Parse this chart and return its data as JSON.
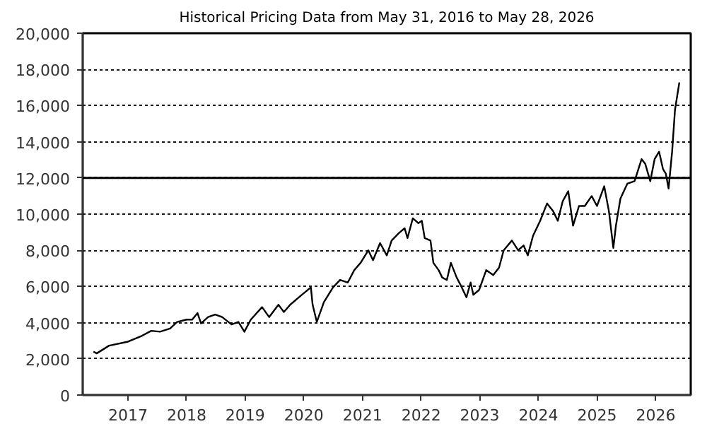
{
  "chart_data": {
    "type": "line",
    "title": "Historical Pricing Data from May 31, 2016 to May 28, 2026",
    "x": [
      "2016-05-31",
      "2016-06-20",
      "2016-09-05",
      "2017-01-01",
      "2017-03-28",
      "2017-05-26",
      "2017-07-20",
      "2017-09-20",
      "2017-11-03",
      "2018-01-01",
      "2018-02-05",
      "2018-03-10",
      "2018-04-01",
      "2018-05-15",
      "2018-06-28",
      "2018-08-10",
      "2018-10-08",
      "2018-11-20",
      "2018-12-27",
      "2019-02-05",
      "2019-04-16",
      "2019-05-30",
      "2019-07-27",
      "2019-08-30",
      "2019-10-08",
      "2019-12-20",
      "2020-02-14",
      "2020-02-25",
      "2020-03-22",
      "2020-05-05",
      "2020-07-01",
      "2020-08-14",
      "2020-10-01",
      "2020-11-10",
      "2020-12-20",
      "2021-02-06",
      "2021-03-07",
      "2021-04-20",
      "2021-06-01",
      "2021-07-01",
      "2021-08-15",
      "2021-09-20",
      "2021-10-08",
      "2021-11-10",
      "2021-12-15",
      "2022-01-05",
      "2022-01-23",
      "2022-02-28",
      "2022-03-18",
      "2022-04-20",
      "2022-05-12",
      "2022-06-10",
      "2022-07-05",
      "2022-08-10",
      "2022-09-03",
      "2022-10-10",
      "2022-11-05",
      "2022-11-22",
      "2022-12-28",
      "2023-02-10",
      "2023-03-26",
      "2023-05-01",
      "2023-05-30",
      "2023-07-20",
      "2023-08-28",
      "2023-10-01",
      "2023-10-27",
      "2023-11-29",
      "2024-01-12",
      "2024-02-24",
      "2024-04-01",
      "2024-05-01",
      "2024-06-01",
      "2024-07-05",
      "2024-08-04",
      "2024-09-10",
      "2024-10-16",
      "2024-11-28",
      "2024-12-31",
      "2025-02-14",
      "2025-03-15",
      "2025-04-12",
      "2025-04-28",
      "2025-05-26",
      "2025-07-08",
      "2025-08-22",
      "2025-10-05",
      "2025-10-28",
      "2025-11-28",
      "2025-12-25",
      "2026-01-22",
      "2026-02-15",
      "2026-03-05",
      "2026-03-22",
      "2026-04-13",
      "2026-05-01",
      "2026-05-28"
    ],
    "series": [
      {
        "color": "#000000",
        "values": [
          2400,
          2300,
          2730,
          2950,
          3270,
          3550,
          3500,
          3680,
          4040,
          4170,
          4170,
          4530,
          3960,
          4310,
          4450,
          4310,
          3900,
          4040,
          3500,
          4170,
          4860,
          4310,
          4990,
          4590,
          4990,
          5540,
          5950,
          4990,
          4040,
          5130,
          5950,
          6360,
          6220,
          6900,
          7310,
          8000,
          7450,
          8400,
          7720,
          8540,
          8950,
          9220,
          8680,
          9770,
          9500,
          9630,
          8680,
          8540,
          7310,
          6900,
          6500,
          6360,
          7310,
          6500,
          6090,
          5400,
          6220,
          5540,
          5810,
          6900,
          6630,
          7040,
          8000,
          8540,
          8000,
          8270,
          7720,
          8810,
          9630,
          10590,
          10180,
          9630,
          10720,
          11270,
          9360,
          10450,
          10450,
          11000,
          10450,
          11540,
          10180,
          8130,
          9360,
          10860,
          11680,
          11820,
          13040,
          12770,
          11820,
          13040,
          13450,
          12500,
          12230,
          11410,
          13450,
          15770,
          17280
        ]
      }
    ],
    "xlim": [
      "2016-03-25",
      "2026-08-07"
    ],
    "xticks": [
      "2017",
      "2018",
      "2019",
      "2020",
      "2021",
      "2022",
      "2023",
      "2024",
      "2025",
      "2026"
    ],
    "ylim": [
      0,
      20000
    ],
    "yticks": [
      {
        "value": 0,
        "label": "0"
      },
      {
        "value": 2000,
        "label": "2,000"
      },
      {
        "value": 4000,
        "label": "4,000"
      },
      {
        "value": 6000,
        "label": "6,000"
      },
      {
        "value": 8000,
        "label": "8,000"
      },
      {
        "value": 10000,
        "label": "10,000"
      },
      {
        "value": 12000,
        "label": "12,000"
      },
      {
        "value": 14000,
        "label": "14,000"
      },
      {
        "value": 16000,
        "label": "16,000"
      },
      {
        "value": 18000,
        "label": "18,000"
      },
      {
        "value": 20000,
        "label": "20,000"
      }
    ],
    "ref_lines": [
      {
        "axis": "y",
        "value": 12000,
        "color": "#000000",
        "line_style": "solid"
      }
    ],
    "grid": "y",
    "marker": "none",
    "line_style": "solid"
  }
}
